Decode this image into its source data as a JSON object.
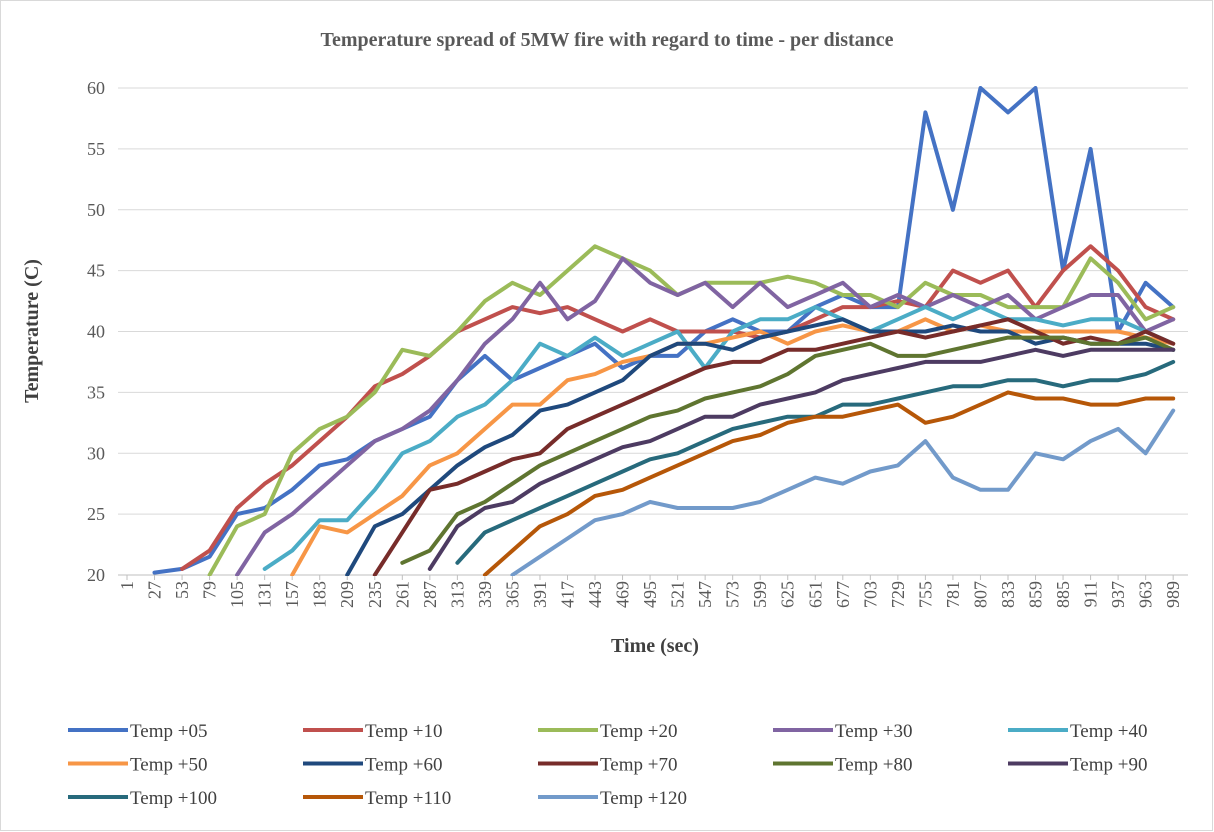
{
  "chart_data": {
    "type": "line",
    "title": "Temperature spread of 5MW fire with regard to time - per distance",
    "x_label": "Time (sec)",
    "y_label": "Temperature (C)",
    "x": [
      1,
      27,
      53,
      79,
      105,
      131,
      157,
      183,
      209,
      235,
      261,
      287,
      313,
      339,
      365,
      391,
      417,
      443,
      469,
      495,
      521,
      547,
      573,
      599,
      625,
      651,
      677,
      703,
      729,
      755,
      781,
      807,
      833,
      859,
      885,
      911,
      937,
      963,
      989
    ],
    "xlim": [
      -7.5,
      1003
    ],
    "xticks": [
      1,
      27,
      53,
      79,
      105,
      131,
      157,
      183,
      209,
      235,
      261,
      287,
      313,
      339,
      365,
      391,
      417,
      443,
      469,
      495,
      521,
      547,
      573,
      599,
      625,
      651,
      677,
      703,
      729,
      755,
      781,
      807,
      833,
      859,
      885,
      911,
      937,
      963,
      989
    ],
    "ylim": [
      20,
      60
    ],
    "yticks": [
      20,
      25,
      30,
      35,
      40,
      45,
      50,
      55,
      60
    ],
    "grid": true,
    "legend": "bottom",
    "series": [
      {
        "name": "Temp +05",
        "color": "#4472c4",
        "values": [
          null,
          20.2,
          20.5,
          21.5,
          25,
          25.5,
          27,
          29,
          29.5,
          31,
          32,
          33,
          36,
          38,
          36,
          37,
          38,
          39,
          37,
          38,
          38,
          40,
          41,
          40,
          40,
          42,
          43,
          42,
          42,
          58,
          50,
          60,
          58,
          60,
          45,
          55,
          40,
          44,
          42
        ]
      },
      {
        "name": "Temp +10",
        "color": "#c0504d",
        "values": [
          null,
          null,
          20.5,
          22,
          25.5,
          27.5,
          29,
          31,
          33,
          35.5,
          36.5,
          38,
          40,
          41,
          42,
          41.5,
          42,
          41,
          40,
          41,
          40,
          40,
          40,
          39.5,
          40,
          41,
          42,
          42,
          42.5,
          42,
          45,
          44,
          45,
          42,
          45,
          47,
          45,
          42,
          41
        ]
      },
      {
        "name": "Temp +20",
        "color": "#9bbb59",
        "values": [
          null,
          null,
          null,
          20,
          24,
          25,
          30,
          32,
          33,
          35,
          38.5,
          38,
          40,
          42.5,
          44,
          43,
          45,
          47,
          46,
          45,
          43,
          44,
          44,
          44,
          44.5,
          44,
          43,
          43,
          42,
          44,
          43,
          43,
          42,
          42,
          42,
          46,
          44,
          41,
          42
        ]
      },
      {
        "name": "Temp +30",
        "color": "#8064a2",
        "values": [
          null,
          null,
          null,
          null,
          20,
          23.5,
          25,
          27,
          29,
          31,
          32,
          33.5,
          36,
          39,
          41,
          44,
          41,
          42.5,
          46,
          44,
          43,
          44,
          42,
          44,
          42,
          43,
          44,
          42,
          43,
          42,
          43,
          42,
          43,
          41,
          42,
          43,
          43,
          40,
          41
        ]
      },
      {
        "name": "Temp +40",
        "color": "#4bacc6",
        "values": [
          null,
          null,
          null,
          null,
          null,
          20.5,
          22,
          24.5,
          24.5,
          27,
          30,
          31,
          33,
          34,
          36,
          39,
          38,
          39.5,
          38,
          39,
          40,
          37,
          40,
          41,
          41,
          42,
          41,
          40,
          41,
          42,
          41,
          42,
          41,
          41,
          40.5,
          41,
          41,
          40,
          39
        ]
      },
      {
        "name": "Temp +50",
        "color": "#f79646",
        "values": [
          null,
          null,
          null,
          null,
          null,
          null,
          20,
          24,
          23.5,
          25,
          26.5,
          29,
          30,
          32,
          34,
          34,
          36,
          36.5,
          37.5,
          38,
          39,
          39,
          39.5,
          40,
          39,
          40,
          40.5,
          40,
          40,
          41,
          40,
          40.5,
          40,
          40,
          40,
          40,
          40,
          39.5,
          39
        ]
      },
      {
        "name": "Temp +60",
        "color": "#1f497d",
        "values": [
          null,
          null,
          null,
          null,
          null,
          null,
          null,
          null,
          20,
          24,
          25,
          27,
          29,
          30.5,
          31.5,
          33.5,
          34,
          35,
          36,
          38,
          39,
          39,
          38.5,
          39.5,
          40,
          40.5,
          41,
          40,
          40,
          40,
          40.5,
          40,
          40,
          39,
          39.5,
          39,
          39,
          39,
          38.5
        ]
      },
      {
        "name": "Temp +70",
        "color": "#772c2a",
        "values": [
          null,
          null,
          null,
          null,
          null,
          null,
          null,
          null,
          null,
          20,
          23.5,
          27,
          27.5,
          28.5,
          29.5,
          30,
          32,
          33,
          34,
          35,
          36,
          37,
          37.5,
          37.5,
          38.5,
          38.5,
          39,
          39.5,
          40,
          39.5,
          40,
          40.5,
          41,
          40,
          39,
          39.5,
          39,
          40,
          39
        ]
      },
      {
        "name": "Temp +80",
        "color": "#5f7530",
        "values": [
          null,
          null,
          null,
          null,
          null,
          null,
          null,
          null,
          null,
          null,
          21,
          22,
          25,
          26,
          27.5,
          29,
          30,
          31,
          32,
          33,
          33.5,
          34.5,
          35,
          35.5,
          36.5,
          38,
          38.5,
          39,
          38,
          38,
          38.5,
          39,
          39.5,
          39.5,
          39.5,
          39,
          39,
          39.5,
          38.5
        ]
      },
      {
        "name": "Temp +90",
        "color": "#4d3b62",
        "values": [
          null,
          null,
          null,
          null,
          null,
          null,
          null,
          null,
          null,
          null,
          null,
          20.5,
          24,
          25.5,
          26,
          27.5,
          28.5,
          29.5,
          30.5,
          31,
          32,
          33,
          33,
          34,
          34.5,
          35,
          36,
          36.5,
          37,
          37.5,
          37.5,
          37.5,
          38,
          38.5,
          38,
          38.5,
          38.5,
          38.5,
          38.5
        ]
      },
      {
        "name": "Temp +100",
        "color": "#276a7c",
        "values": [
          null,
          null,
          null,
          null,
          null,
          null,
          null,
          null,
          null,
          null,
          null,
          null,
          21,
          23.5,
          24.5,
          25.5,
          26.5,
          27.5,
          28.5,
          29.5,
          30,
          31,
          32,
          32.5,
          33,
          33,
          34,
          34,
          34.5,
          35,
          35.5,
          35.5,
          36,
          36,
          35.5,
          36,
          36,
          36.5,
          37.5
        ]
      },
      {
        "name": "Temp +110",
        "color": "#b65708",
        "values": [
          null,
          null,
          null,
          null,
          null,
          null,
          null,
          null,
          null,
          null,
          null,
          null,
          null,
          20,
          22,
          24,
          25,
          26.5,
          27,
          28,
          29,
          30,
          31,
          31.5,
          32.5,
          33,
          33,
          33.5,
          34,
          32.5,
          33,
          34,
          35,
          34.5,
          34.5,
          34,
          34,
          34.5,
          34.5
        ]
      },
      {
        "name": "Temp +120",
        "color": "#729aca",
        "values": [
          null,
          null,
          null,
          null,
          null,
          null,
          null,
          null,
          null,
          null,
          null,
          null,
          null,
          null,
          20,
          21.5,
          23,
          24.5,
          25,
          26,
          25.5,
          25.5,
          25.5,
          26,
          27,
          28,
          27.5,
          28.5,
          29,
          31,
          28,
          27,
          27,
          30,
          29.5,
          31,
          32,
          30,
          33.5
        ]
      }
    ]
  }
}
